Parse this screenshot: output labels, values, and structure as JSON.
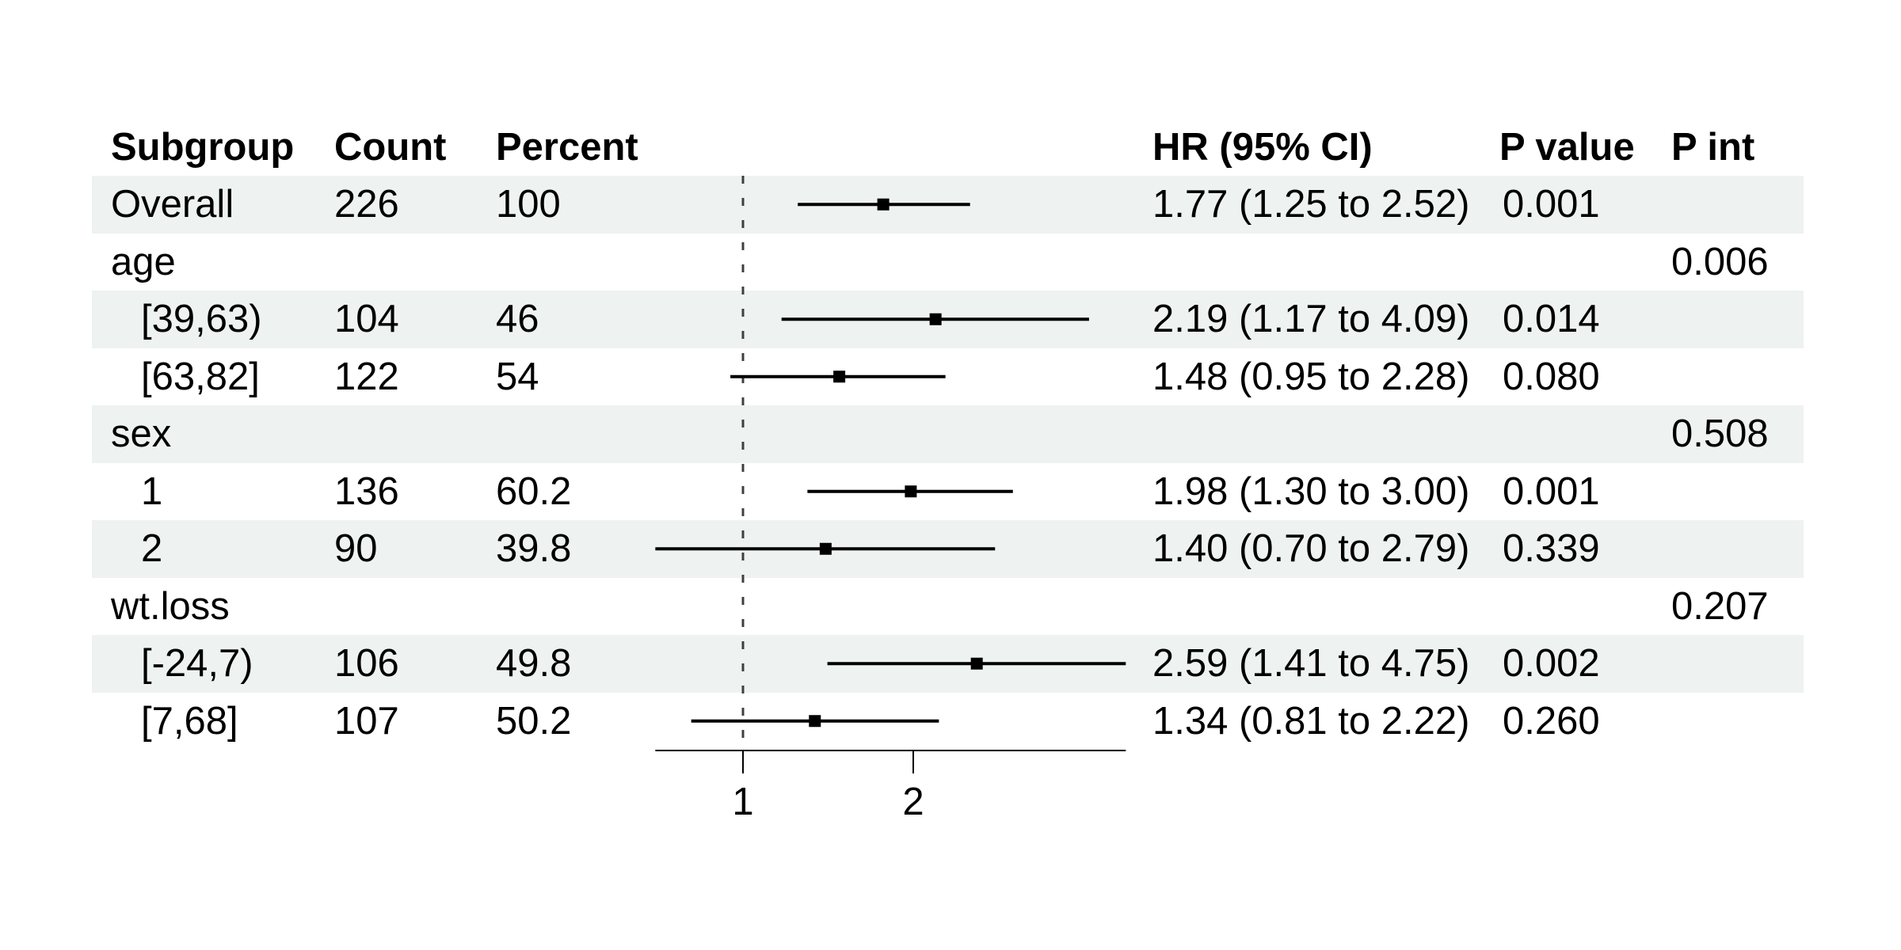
{
  "table": {
    "columns": [
      {
        "id": "subgroup",
        "label": "Subgroup"
      },
      {
        "id": "count",
        "label": "Count"
      },
      {
        "id": "percent",
        "label": "Percent"
      },
      {
        "id": "hr",
        "label": "HR (95% CI)"
      },
      {
        "id": "pvalue",
        "label": "P value"
      },
      {
        "id": "pint",
        "label": "P int"
      }
    ]
  },
  "chart_data": {
    "type": "forest",
    "x_axis": {
      "scale": "log",
      "ticks": [
        "1",
        "2"
      ],
      "tick_values": [
        1,
        2
      ],
      "reference_line": 1,
      "range": [
        0.7,
        4.75
      ]
    },
    "rows": [
      {
        "subgroup": "Overall",
        "indent": 0,
        "count": "226",
        "percent": "100",
        "est": 1.77,
        "lo": 1.25,
        "hi": 2.52,
        "hr_text": "1.77 (1.25 to 2.52)",
        "p_value": "0.001",
        "p_int": "",
        "shaded": true
      },
      {
        "subgroup": "age",
        "indent": 0,
        "count": "",
        "percent": "",
        "est": null,
        "lo": null,
        "hi": null,
        "hr_text": "",
        "p_value": "",
        "p_int": "0.006",
        "shaded": false
      },
      {
        "subgroup": "[39,63)",
        "indent": 1,
        "count": "104",
        "percent": "46",
        "est": 2.19,
        "lo": 1.17,
        "hi": 4.09,
        "hr_text": "2.19 (1.17 to 4.09)",
        "p_value": "0.014",
        "p_int": "",
        "shaded": true
      },
      {
        "subgroup": "[63,82]",
        "indent": 1,
        "count": "122",
        "percent": "54",
        "est": 1.48,
        "lo": 0.95,
        "hi": 2.28,
        "hr_text": "1.48 (0.95 to 2.28)",
        "p_value": "0.080",
        "p_int": "",
        "shaded": false
      },
      {
        "subgroup": "sex",
        "indent": 0,
        "count": "",
        "percent": "",
        "est": null,
        "lo": null,
        "hi": null,
        "hr_text": "",
        "p_value": "",
        "p_int": "0.508",
        "shaded": true
      },
      {
        "subgroup": "1",
        "indent": 1,
        "count": "136",
        "percent": "60.2",
        "est": 1.98,
        "lo": 1.3,
        "hi": 3.0,
        "hr_text": "1.98 (1.30 to 3.00)",
        "p_value": "0.001",
        "p_int": "",
        "shaded": false
      },
      {
        "subgroup": "2",
        "indent": 1,
        "count": "90",
        "percent": "39.8",
        "est": 1.4,
        "lo": 0.7,
        "hi": 2.79,
        "hr_text": "1.40 (0.70 to 2.79)",
        "p_value": "0.339",
        "p_int": "",
        "shaded": true
      },
      {
        "subgroup": "wt.loss",
        "indent": 0,
        "count": "",
        "percent": "",
        "est": null,
        "lo": null,
        "hi": null,
        "hr_text": "",
        "p_value": "",
        "p_int": "0.207",
        "shaded": false
      },
      {
        "subgroup": "[-24,7)",
        "indent": 1,
        "count": "106",
        "percent": "49.8",
        "est": 2.59,
        "lo": 1.41,
        "hi": 4.75,
        "hr_text": "2.59 (1.41 to 4.75)",
        "p_value": "0.002",
        "p_int": "",
        "shaded": true
      },
      {
        "subgroup": "[7,68]",
        "indent": 1,
        "count": "107",
        "percent": "50.2",
        "est": 1.34,
        "lo": 0.81,
        "hi": 2.22,
        "hr_text": "1.34 (0.81 to 2.22)",
        "p_value": "0.260",
        "p_int": "",
        "shaded": false
      }
    ]
  },
  "colors": {
    "band": "#eef2f1",
    "text": "#000000",
    "line": "#000000",
    "reference_line": "#3f3f3f",
    "background": "#ffffff"
  }
}
